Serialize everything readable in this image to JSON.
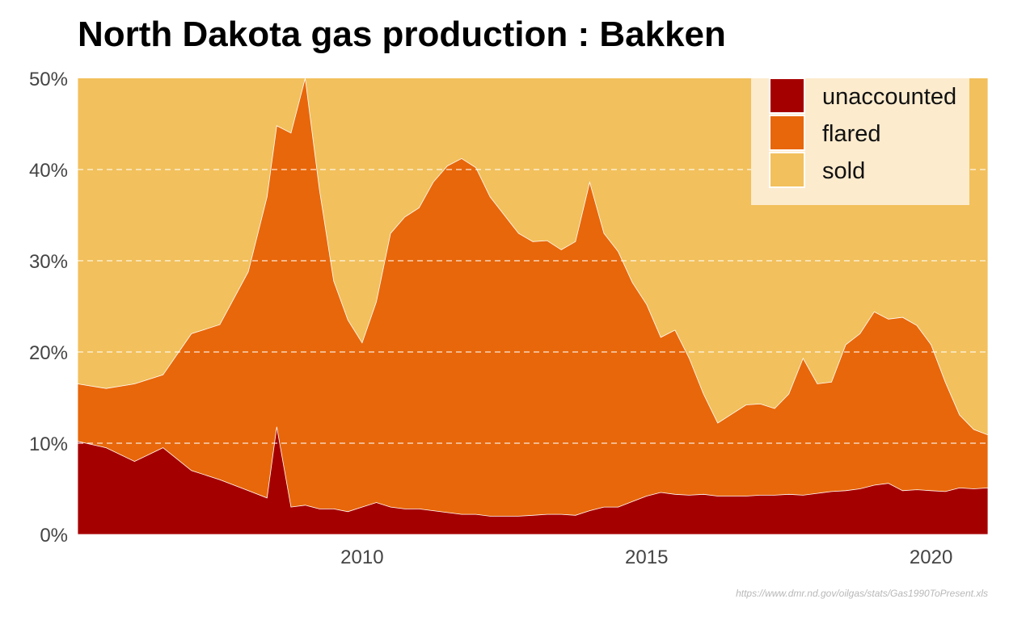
{
  "chart_data": {
    "type": "area",
    "title": "North Dakota gas production : Bakken",
    "xlabel": "",
    "ylabel": "",
    "stacking": "stacked, percent of total gas production",
    "ylim": [
      0,
      50
    ],
    "xlim": [
      2005.0,
      2021.0
    ],
    "yticks": [
      0,
      10,
      20,
      30,
      40,
      50
    ],
    "ytick_labels": [
      "0%",
      "10%",
      "20%",
      "30%",
      "40%",
      "50%"
    ],
    "xticks": [
      2010,
      2015,
      2020
    ],
    "xtick_labels": [
      "2010",
      "2015",
      "2020"
    ],
    "grid": "horizontal dashed white lines",
    "legend_position": "top-right",
    "legend": [
      "unaccounted",
      "flared",
      "sold"
    ],
    "x": [
      2005.0,
      2005.5,
      2006.0,
      2006.5,
      2007.0,
      2007.5,
      2008.0,
      2008.33,
      2008.5,
      2008.75,
      2009.0,
      2009.25,
      2009.5,
      2009.75,
      2010.0,
      2010.25,
      2010.5,
      2010.75,
      2011.0,
      2011.25,
      2011.5,
      2011.75,
      2012.0,
      2012.25,
      2012.5,
      2012.75,
      2013.0,
      2013.25,
      2013.5,
      2013.75,
      2014.0,
      2014.25,
      2014.5,
      2014.75,
      2015.0,
      2015.25,
      2015.5,
      2015.75,
      2016.0,
      2016.25,
      2016.5,
      2016.75,
      2017.0,
      2017.25,
      2017.5,
      2017.75,
      2018.0,
      2018.25,
      2018.5,
      2018.75,
      2019.0,
      2019.25,
      2019.5,
      2019.75,
      2020.0,
      2020.25,
      2020.5,
      2020.75,
      2021.0
    ],
    "series": [
      {
        "name": "unaccounted",
        "color": "#a50000",
        "values": [
          10.2,
          9.5,
          8.0,
          9.5,
          7.0,
          6.0,
          4.8,
          4.0,
          11.8,
          3.0,
          3.2,
          2.8,
          2.8,
          2.5,
          3.0,
          3.5,
          3.0,
          2.8,
          2.8,
          2.6,
          2.4,
          2.2,
          2.2,
          2.0,
          2.0,
          2.0,
          2.1,
          2.2,
          2.2,
          2.1,
          2.6,
          3.0,
          3.0,
          3.6,
          4.2,
          4.6,
          4.4,
          4.3,
          4.4,
          4.2,
          4.2,
          4.2,
          4.3,
          4.3,
          4.4,
          4.3,
          4.5,
          4.7,
          4.8,
          5.0,
          5.4,
          5.6,
          4.8,
          4.9,
          4.8,
          4.7,
          5.1,
          5.0,
          5.1
        ]
      },
      {
        "name": "flared",
        "color": "#e8670a",
        "values": [
          6.3,
          6.5,
          8.5,
          8.0,
          15.0,
          17.0,
          24.0,
          33.0,
          33.0,
          41.0,
          46.8,
          35.0,
          25.0,
          21.0,
          18.0,
          22.0,
          30.0,
          32.0,
          33.0,
          36.0,
          38.0,
          39.0,
          38.0,
          35.0,
          33.0,
          31.0,
          30.0,
          30.0,
          29.0,
          30.0,
          36.0,
          30.0,
          28.0,
          24.0,
          21.0,
          17.0,
          18.0,
          15.0,
          11.0,
          8.0,
          9.0,
          10.0,
          10.0,
          9.5,
          11.0,
          15.0,
          12.0,
          12.0,
          16.0,
          17.0,
          19.0,
          18.0,
          19.0,
          18.0,
          16.0,
          12.0,
          8.0,
          6.5,
          5.8
        ]
      },
      {
        "name": "sold",
        "color": "#f2c05c",
        "values": [
          83.5,
          84.0,
          83.5,
          82.5,
          78.0,
          77.0,
          71.2,
          63.0,
          55.2,
          56.0,
          50.0,
          62.2,
          72.2,
          76.5,
          79.0,
          74.5,
          67.0,
          65.2,
          64.2,
          61.4,
          59.6,
          58.8,
          59.8,
          63.0,
          65.0,
          67.0,
          67.9,
          67.8,
          68.8,
          67.9,
          61.4,
          67.0,
          69.0,
          72.4,
          74.8,
          78.4,
          77.6,
          80.7,
          84.6,
          87.8,
          86.8,
          85.8,
          85.7,
          86.2,
          84.6,
          80.7,
          83.5,
          83.3,
          79.2,
          78.0,
          75.6,
          76.4,
          76.2,
          77.1,
          79.2,
          83.3,
          86.9,
          88.5,
          89.1
        ]
      }
    ]
  },
  "caption": {
    "source": "https://www.dmr.nd.gov/oilgas/stats/Gas1990ToPresent.xls"
  }
}
